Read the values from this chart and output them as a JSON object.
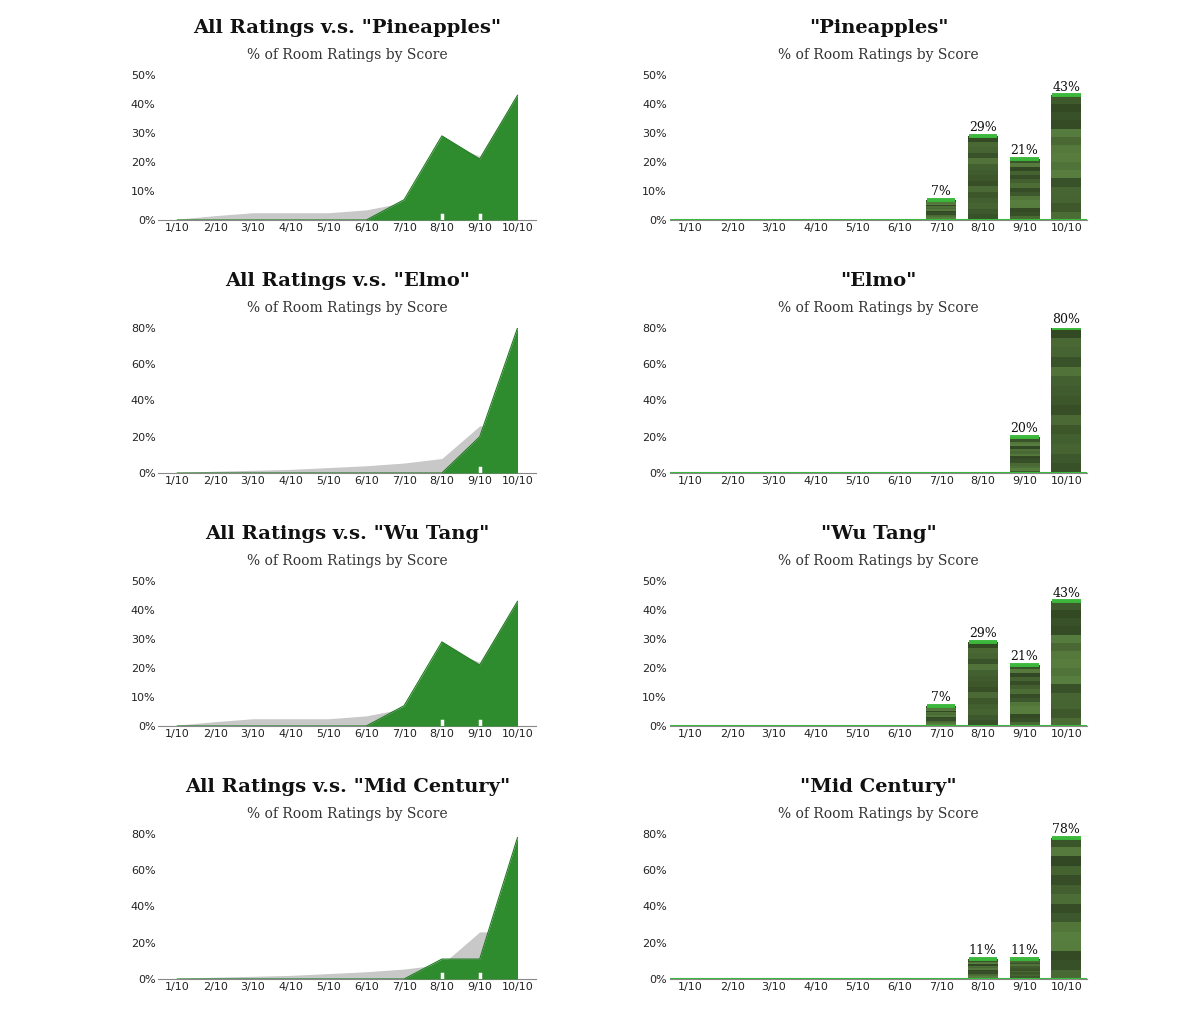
{
  "background_color": "#ffffff",
  "x_labels": [
    "1/10",
    "2/10",
    "3/10",
    "4/10",
    "5/10",
    "6/10",
    "7/10",
    "8/10",
    "9/10",
    "10/10"
  ],
  "x_positions": [
    1,
    2,
    3,
    4,
    5,
    6,
    7,
    8,
    9,
    10
  ],
  "panels": [
    {
      "left_title": "All Ratings v.s. \"Pineapples\"",
      "left_subtitle": "% of Room Ratings by Score",
      "right_title": "\"Pineapples\"",
      "right_subtitle": "% of Room Ratings by Score",
      "left_ylim": 50,
      "right_ylim": 50,
      "left_yticks": [
        0,
        10,
        20,
        30,
        40,
        50
      ],
      "right_yticks": [
        0,
        10,
        20,
        30,
        40,
        50
      ],
      "all_ratings": [
        0.3,
        1.5,
        2.5,
        2.5,
        2.5,
        3.5,
        6,
        27,
        22,
        43
      ],
      "specific_ratings": [
        0,
        0,
        0,
        0,
        0,
        0,
        7,
        29,
        21,
        43
      ],
      "right_bar_labels": [
        "",
        "",
        "",
        "",
        "",
        "",
        "7%",
        "29%",
        "21%",
        "43%"
      ],
      "white_ticks": [
        8,
        9
      ]
    },
    {
      "left_title": "All Ratings v.s. \"Elmo\"",
      "left_subtitle": "% of Room Ratings by Score",
      "right_title": "\"Elmo\"",
      "right_subtitle": "% of Room Ratings by Score",
      "left_ylim": 80,
      "right_ylim": 80,
      "left_yticks": [
        0,
        20,
        40,
        60,
        80
      ],
      "right_yticks": [
        0,
        20,
        40,
        60,
        80
      ],
      "all_ratings": [
        0.3,
        1.0,
        1.5,
        2.0,
        3.0,
        4.0,
        5.5,
        8,
        26,
        26
      ],
      "specific_ratings": [
        0,
        0,
        0,
        0,
        0,
        0,
        0,
        0,
        20,
        80
      ],
      "right_bar_labels": [
        "",
        "",
        "",
        "",
        "",
        "",
        "",
        "",
        "20%",
        "80%"
      ],
      "white_ticks": [
        9
      ]
    },
    {
      "left_title": "All Ratings v.s. \"Wu Tang\"",
      "left_subtitle": "% of Room Ratings by Score",
      "right_title": "\"Wu Tang\"",
      "right_subtitle": "% of Room Ratings by Score",
      "left_ylim": 50,
      "right_ylim": 50,
      "left_yticks": [
        0,
        10,
        20,
        30,
        40,
        50
      ],
      "right_yticks": [
        0,
        10,
        20,
        30,
        40,
        50
      ],
      "all_ratings": [
        0.3,
        1.5,
        2.5,
        2.5,
        2.5,
        3.5,
        6,
        27,
        22,
        43
      ],
      "specific_ratings": [
        0,
        0,
        0,
        0,
        0,
        0,
        7,
        29,
        21,
        43
      ],
      "right_bar_labels": [
        "",
        "",
        "",
        "",
        "",
        "",
        "7%",
        "29%",
        "21%",
        "43%"
      ],
      "white_ticks": [
        8,
        9
      ]
    },
    {
      "left_title": "All Ratings v.s. \"Mid Century\"",
      "left_subtitle": "% of Room Ratings by Score",
      "right_title": "\"Mid Century\"",
      "right_subtitle": "% of Room Ratings by Score",
      "left_ylim": 80,
      "right_ylim": 80,
      "left_yticks": [
        0,
        20,
        40,
        60,
        80
      ],
      "right_yticks": [
        0,
        20,
        40,
        60,
        80
      ],
      "all_ratings": [
        0.3,
        1.0,
        1.5,
        2.0,
        3.0,
        4.0,
        5.5,
        8,
        26,
        26
      ],
      "specific_ratings": [
        0,
        0,
        0,
        0,
        0,
        0,
        0,
        11,
        11,
        78
      ],
      "right_bar_labels": [
        "",
        "",
        "",
        "",
        "",
        "",
        "",
        "11%",
        "11%",
        "78%"
      ],
      "white_ticks": [
        8,
        9
      ]
    }
  ],
  "green_dark": "#1e7a1e",
  "green_mid": "#2e8b2e",
  "green_light": "#4caf4c",
  "green_bright": "#3cb83c",
  "gray_fill": "#c8c8c8",
  "gray_line": "#aaaaaa",
  "bar_dark": "#2d5a2d",
  "title_fontsize": 14,
  "subtitle_fontsize": 10,
  "axis_fontsize": 8,
  "label_fontsize": 9
}
